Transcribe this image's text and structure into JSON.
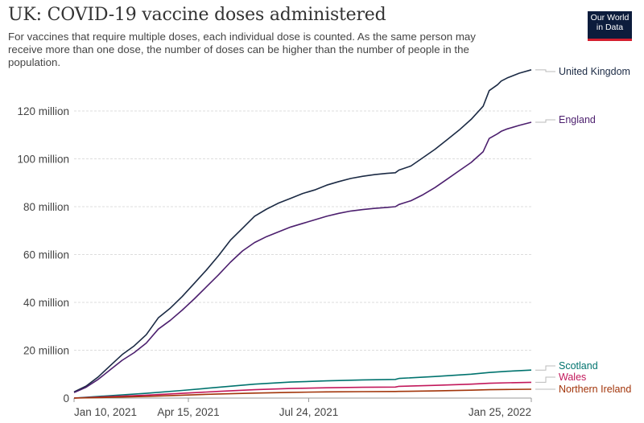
{
  "header": {
    "title": "UK: COVID-19 vaccine doses administered",
    "subtitle": "For vaccines that require multiple doses, each individual dose is counted. As the same person may receive more than one dose, the number of doses can be higher than the number of people in the population.",
    "logo_line1": "Our World",
    "logo_line2": "in Data"
  },
  "colors": {
    "logo_bg": "#0c1c3c",
    "logo_accent": "#d41e2e",
    "grid": "#dddddd",
    "axis": "#999999"
  },
  "chart_data": {
    "type": "line",
    "title": "UK: COVID-19 vaccine doses administered",
    "xlabel": "",
    "ylabel": "",
    "grid": "horizontal-dashed",
    "legend": "right-inline",
    "x_ticks": [
      "Jan 10, 2021",
      "Apr 15, 2021",
      "Jul 24, 2021",
      "Jan 25, 2022"
    ],
    "x_tick_days": [
      0,
      95,
      195,
      380
    ],
    "y_ticks": [
      0,
      20000000,
      40000000,
      60000000,
      80000000,
      100000000,
      120000000
    ],
    "y_tick_labels": [
      "0",
      "20 million",
      "40 million",
      "60 million",
      "80 million",
      "100 million",
      "120 million"
    ],
    "ylim": [
      0,
      137000000
    ],
    "xlim_days": [
      0,
      380
    ],
    "series": [
      {
        "name": "United Kingdom",
        "color": "#1b2a44",
        "days": [
          0,
          10,
          20,
          30,
          40,
          50,
          60,
          70,
          80,
          90,
          100,
          110,
          120,
          130,
          140,
          150,
          160,
          170,
          180,
          190,
          200,
          210,
          220,
          230,
          240,
          250,
          260,
          267,
          270,
          280,
          290,
          300,
          310,
          320,
          330,
          340,
          345,
          352,
          355,
          360,
          370,
          380
        ],
        "values": [
          2600000,
          5000000,
          8800000,
          13500000,
          18200000,
          21800000,
          26500000,
          33500000,
          37600000,
          42500000,
          48000000,
          53500000,
          59500000,
          66000000,
          71000000,
          76000000,
          79000000,
          81500000,
          83500000,
          85500000,
          87000000,
          89000000,
          90500000,
          91800000,
          92700000,
          93400000,
          93900000,
          94200000,
          95300000,
          97000000,
          100500000,
          104000000,
          108000000,
          112000000,
          116500000,
          122000000,
          128500000,
          131000000,
          132500000,
          133800000,
          135800000,
          137200000
        ]
      },
      {
        "name": "England",
        "color": "#4c1f6e",
        "days": [
          0,
          10,
          20,
          30,
          40,
          50,
          60,
          70,
          80,
          90,
          100,
          110,
          120,
          130,
          140,
          150,
          160,
          170,
          180,
          190,
          200,
          210,
          220,
          230,
          240,
          250,
          260,
          267,
          270,
          280,
          290,
          300,
          310,
          320,
          330,
          340,
          345,
          352,
          355,
          360,
          370,
          380
        ],
        "values": [
          2300000,
          4500000,
          7800000,
          11800000,
          15800000,
          19000000,
          23000000,
          28800000,
          32500000,
          36800000,
          41500000,
          46500000,
          51500000,
          56800000,
          61500000,
          65000000,
          67500000,
          69500000,
          71500000,
          73000000,
          74500000,
          76000000,
          77200000,
          78200000,
          78800000,
          79300000,
          79700000,
          80000000,
          80900000,
          82500000,
          85000000,
          88000000,
          91500000,
          95000000,
          98500000,
          103000000,
          108500000,
          110500000,
          111500000,
          112500000,
          114000000,
          115300000
        ]
      },
      {
        "name": "Scotland",
        "color": "#00736e",
        "days": [
          0,
          30,
          60,
          90,
          120,
          150,
          180,
          210,
          240,
          267,
          270,
          300,
          330,
          345,
          360,
          380
        ],
        "values": [
          0,
          1000000,
          2000000,
          3200000,
          4500000,
          5800000,
          6700000,
          7200000,
          7600000,
          7800000,
          8200000,
          9000000,
          10000000,
          10700000,
          11200000,
          11700000
        ]
      },
      {
        "name": "Wales",
        "color": "#c2185b",
        "days": [
          0,
          30,
          60,
          90,
          120,
          150,
          180,
          210,
          240,
          267,
          270,
          300,
          330,
          345,
          360,
          380
        ],
        "values": [
          0,
          600000,
          1200000,
          2000000,
          2800000,
          3500000,
          4000000,
          4300000,
          4500000,
          4600000,
          4900000,
          5300000,
          5800000,
          6200000,
          6400000,
          6600000
        ]
      },
      {
        "name": "Northern Ireland",
        "color": "#a2350a",
        "days": [
          0,
          30,
          60,
          90,
          120,
          150,
          180,
          210,
          240,
          267,
          270,
          300,
          330,
          345,
          360,
          380
        ],
        "values": [
          0,
          300000,
          700000,
          1200000,
          1700000,
          2100000,
          2400000,
          2600000,
          2700000,
          2750000,
          2800000,
          3000000,
          3300000,
          3500000,
          3600000,
          3700000
        ]
      }
    ]
  }
}
